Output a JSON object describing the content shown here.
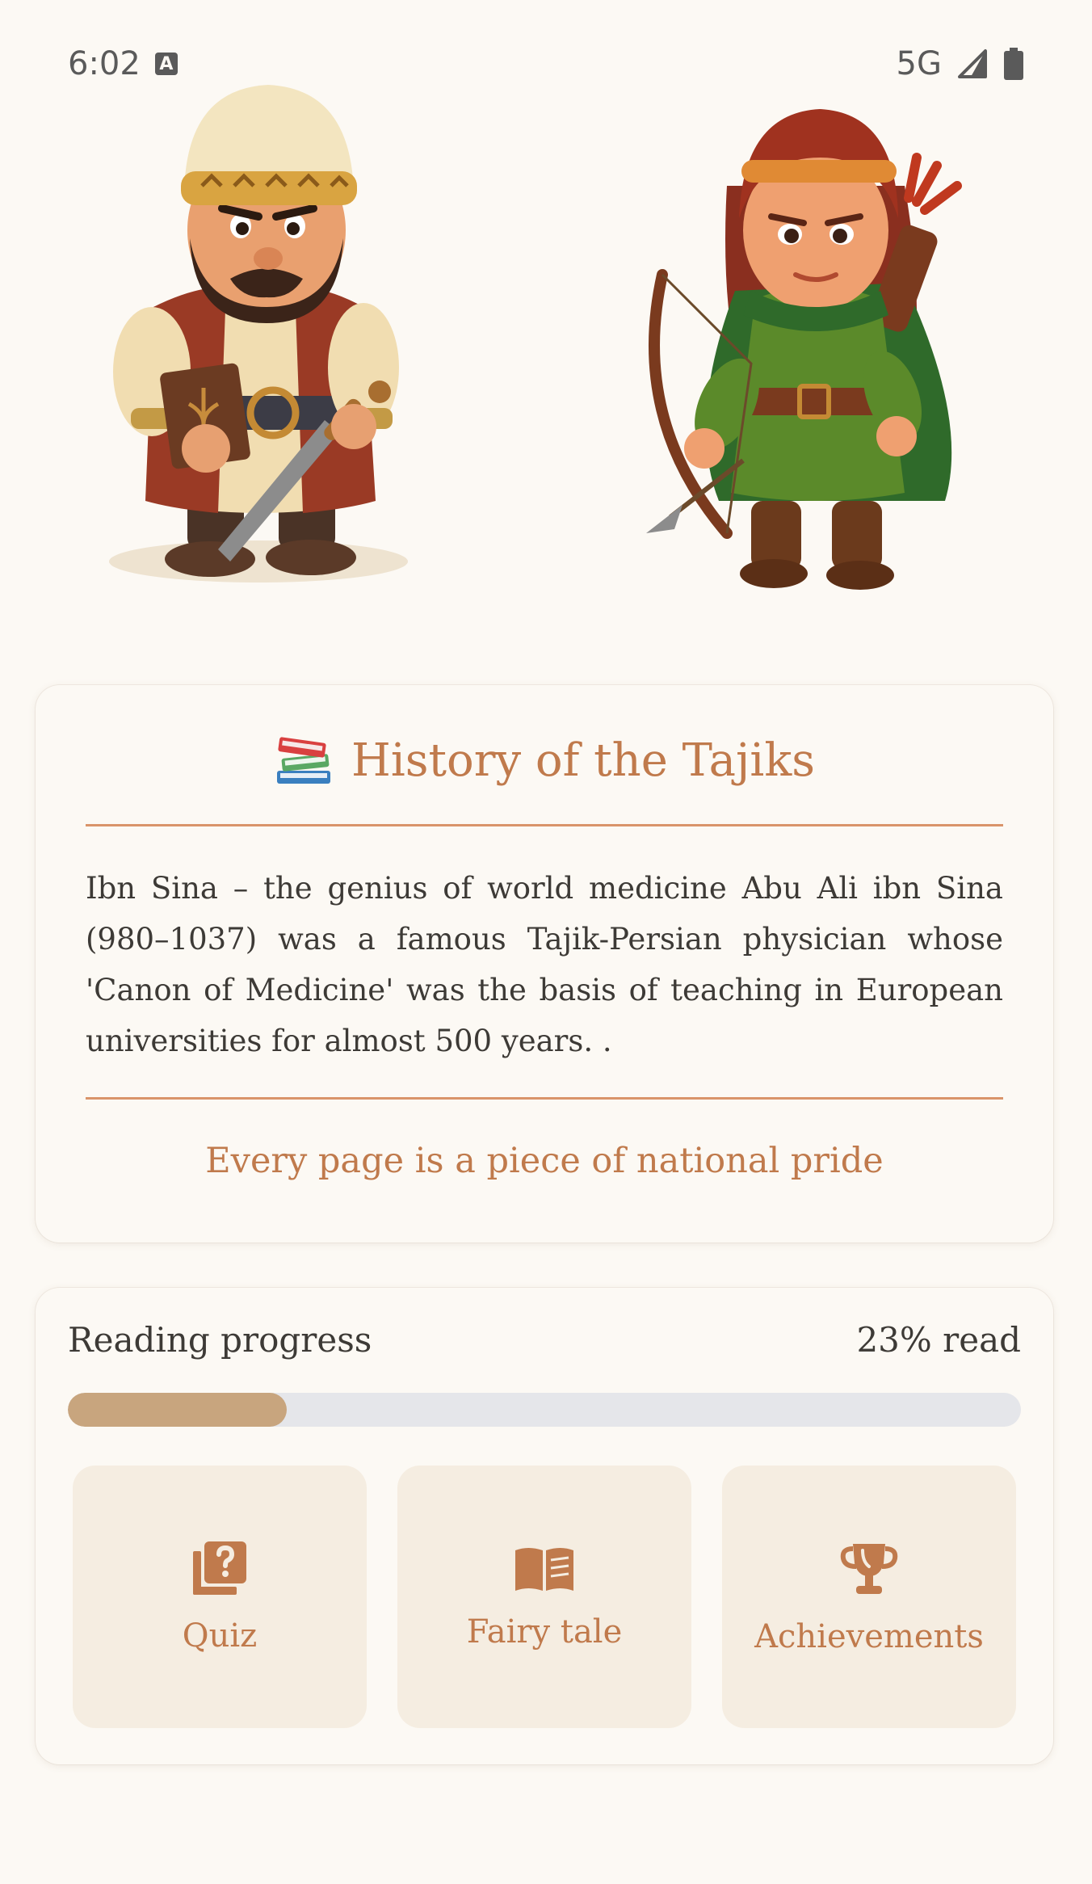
{
  "status_bar": {
    "time": "6:02",
    "network": "5G",
    "notification_badge": "A"
  },
  "history": {
    "title": "History of the Tajiks",
    "title_icon": "books-icon",
    "text": "Ibn Sina – the genius of world medicine Abu Ali ibn Sina (980–1037) was a famous Tajik-Persian physician whose 'Canon of Medicine' was the basis of teaching in European universities for almost 500 years. .",
    "tagline": "Every page is a piece of national pride"
  },
  "progress": {
    "label": "Reading progress",
    "value_text": "23% read",
    "percent": 23
  },
  "actions": [
    {
      "label": "Quiz",
      "icon": "quiz-icon"
    },
    {
      "label": "Fairy tale",
      "icon": "open-book-icon"
    },
    {
      "label": "Achievements",
      "icon": "trophy-icon"
    }
  ],
  "colors": {
    "accent": "#c07a4c",
    "progress_fill": "#c8a57e",
    "progress_track": "#e5e6ea",
    "tile_bg": "#f5ede1",
    "background": "#fcf9f4"
  }
}
